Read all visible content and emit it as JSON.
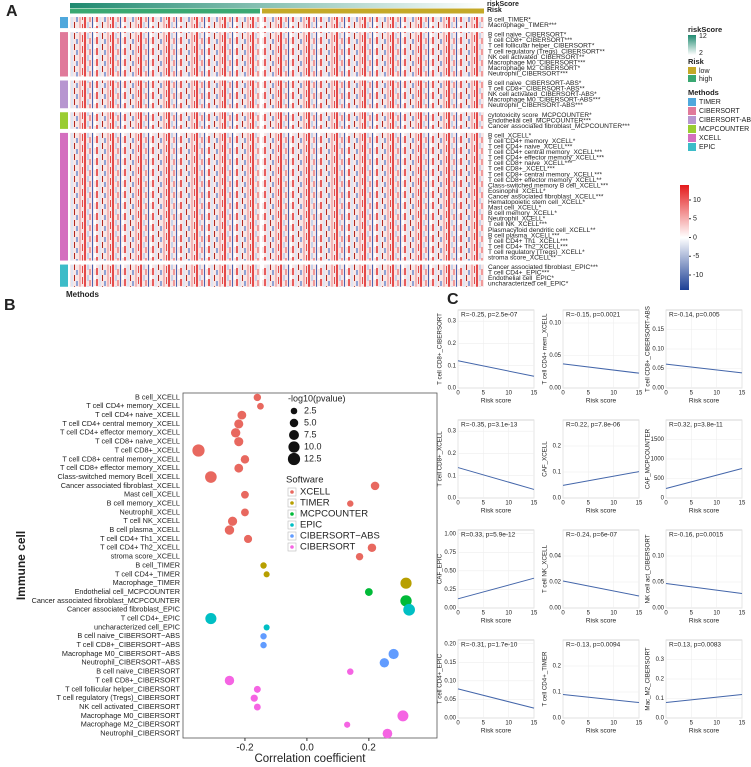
{
  "chart_data": [
    {
      "type": "heatmap",
      "panel": "A",
      "annotation_labels": [
        "riskScore",
        "Risk"
      ],
      "xlabel": "Methods",
      "row_groups": [
        {
          "color": "#4fa8dc",
          "rows": [
            "B cell_TIMER*",
            "Macrophage_TIMER***"
          ]
        },
        {
          "color": "#e07a9a",
          "rows": [
            "B cell naive_CIBERSORT*",
            "T cell CD8+_CIBERSORT***",
            "T cell follicular helper_CIBERSORT*",
            "T cell regulatory (Tregs)_CIBERSORT**",
            "NK cell activated_CIBERSORT**",
            "Macrophage M0_CIBERSORT***",
            "Macrophage M2_CIBERSORT*",
            "Neutrophil_CIBERSORT***"
          ]
        },
        {
          "color": "#b796d0",
          "rows": [
            "B cell naive_CIBERSORT-ABS*",
            "T cell CD8+_CIBERSORT-ABS**",
            "NK cell activated_CIBERSORT-ABS*",
            "Macrophage M0_CIBERSORT-ABS***",
            "Neutrophil_CIBERSORT-ABS***"
          ]
        },
        {
          "color": "#9acd32",
          "rows": [
            "cytotoxicity score_MCPCOUNTER*",
            "Endothelial cell_MCPCOUNTER***",
            "Cancer associated fibroblast_MCPCOUNTER***"
          ]
        },
        {
          "color": "#d46fbf",
          "rows": [
            "B cell_XCELL*",
            "T cell CD4+ memory_XCELL*",
            "T cell CD4+ naive_XCELL***",
            "T cell CD4+ central memory_XCELL***",
            "T cell CD4+ effector memory_XCELL***",
            "T cell CD8+ naive_XCELL***",
            "T cell CD8+_XCELL***",
            "T cell CD8+ central memory_XCELL***",
            "T cell CD8+ effector memory_XCELL**",
            "Class-switched memory B cell_XCELL***",
            "Eosinophil_XCELL*",
            "Cancer associated fibroblast_XCELL***",
            "Hematopoietic stem cell_XCELL*",
            "Mast cell_XCELL*",
            "B cell memory_XCELL*",
            "Neutrophil_XCELL*",
            "T cell NK_XCELL***",
            "Plasmacytoid dendritic cell_XCELL**",
            "B cell plasma_XCELL***",
            "T cell CD4+ Th1_XCELL***",
            "T cell CD4+ Th2_XCELL***",
            "T cell regulatory (Tregs)_XCELL*",
            "stroma score_XCELL**"
          ]
        },
        {
          "color": "#3cbcc8",
          "rows": [
            "Cancer associated fibroblast_EPIC***",
            "T cell CD4+_EPIC***",
            "Endothelial cell_EPIC*",
            "uncharacterized cell_EPIC*"
          ]
        }
      ],
      "risk_score_legend": {
        "title": "riskScore",
        "ticks": [
          12,
          2
        ],
        "colors": [
          "#1f8a70",
          "#ffffff"
        ]
      },
      "risk_legend": {
        "title": "Risk",
        "items": [
          {
            "name": "low",
            "color": "#c4a928"
          },
          {
            "name": "high",
            "color": "#3aa872"
          }
        ]
      },
      "methods_legend": {
        "title": "Methods",
        "items": [
          {
            "name": "TIMER",
            "color": "#4fa8dc"
          },
          {
            "name": "CIBERSORT",
            "color": "#e07a9a"
          },
          {
            "name": "CIBERSORT-ABS",
            "color": "#b796d0"
          },
          {
            "name": "MCPCOUNTER",
            "color": "#9acd32"
          },
          {
            "name": "XCELL",
            "color": "#d46fbf"
          },
          {
            "name": "EPIC",
            "color": "#3cbcc8"
          }
        ]
      },
      "colorbar": {
        "lim": [
          -14,
          14
        ],
        "ticks": [
          10,
          5,
          0,
          -5,
          -10
        ],
        "colors": [
          "#1c3f95",
          "#ffffff",
          "#e41a1c"
        ]
      }
    },
    {
      "type": "dot",
      "panel": "B",
      "ylabel": "Immune cell",
      "xlabel": "Correlation coefficient",
      "xlim": [
        -0.4,
        0.42
      ],
      "xticks": [
        -0.2,
        {
          "value": 0,
          "label": "0.0"
        },
        0.2
      ],
      "size_legend": {
        "title": "-log10(pvalue)",
        "ticks": [
          2.5,
          {
            "value": 5,
            "label": "5.0"
          },
          7.5,
          {
            "value": 10,
            "label": "10.0"
          },
          12.5
        ]
      },
      "legend_title": "Software",
      "series": [
        {
          "name": "XCELL",
          "color": "#e8685f",
          "categories": [
            "B cell_XCELL",
            "T cell CD4+ memory_XCELL",
            "T cell CD4+ naive_XCELL",
            "T cell CD4+ central memory_XCELL",
            "T cell CD4+ effector memory_XCELL",
            "T cell CD8+ naive_XCELL",
            "T cell CD8+_XCELL",
            "T cell CD8+ central memory_XCELL",
            "T cell CD8+ effector memory_XCELL",
            "Class-switched memory Bcell_XCELL",
            "Cancer associated fibroblast_XCELL",
            "Mast cell_XCELL",
            "B cell memory_XCELL",
            "Neutrophil_XCELL",
            "T cell NK_XCELL",
            "B cell plasma_XCELL",
            "T cell CD4+ Th1_XCELL",
            "T cell CD4+ Th2_XCELL",
            "stroma score_XCELL"
          ],
          "values": [
            -0.16,
            -0.15,
            -0.21,
            -0.22,
            -0.23,
            -0.22,
            -0.35,
            -0.2,
            -0.22,
            -0.31,
            0.22,
            -0.2,
            0.14,
            -0.2,
            -0.24,
            -0.25,
            -0.19,
            0.21,
            0.17
          ],
          "sizes": [
            3.5,
            2.7,
            5.5,
            6,
            6.5,
            6,
            12.5,
            5,
            5.5,
            11,
            5.1,
            4,
            2.3,
            4,
            6.2,
            6.5,
            4.5,
            5,
            3.5
          ]
        },
        {
          "name": "TIMER",
          "color": "#b79f00",
          "categories": [
            "B cell_TIMER",
            "T cell CD4+_TIMER",
            "Macrophage_TIMER"
          ],
          "values": [
            -0.14,
            -0.13,
            0.32
          ],
          "sizes": [
            2.3,
            2,
            10
          ]
        },
        {
          "name": "MCPCOUNTER",
          "color": "#00ba38",
          "categories": [
            "Endothelial cell_MCPCOUNTER",
            "Cancer associated fibroblast_MCPCOUNTER"
          ],
          "values": [
            0.2,
            0.32
          ],
          "sizes": [
            4,
            10.4
          ]
        },
        {
          "name": "EPIC",
          "color": "#00bfc4",
          "categories": [
            "Cancer associated fibroblast_EPIC",
            "T cell CD4+_EPIC",
            "uncharacterized cell_EPIC"
          ],
          "values": [
            0.33,
            -0.31,
            -0.13
          ],
          "sizes": [
            11.2,
            9.8,
            2
          ]
        },
        {
          "name": "CIBERSORT−ABS",
          "color": "#619cff",
          "categories": [
            "B cell naive_CIBERSORT−ABS",
            "T cell CD8+_CIBERSORT−ABS",
            "Macrophage M0_CIBERSORT−ABS",
            "Neutrophil_CIBERSORT−ABS"
          ],
          "values": [
            -0.14,
            -0.14,
            0.28,
            0.25
          ],
          "sizes": [
            2.3,
            2.3,
            8,
            6.5
          ]
        },
        {
          "name": "CIBERSORT",
          "color": "#f564e3",
          "categories": [
            "B cell naive_CIBERSORT",
            "T cell CD8+_CIBERSORT",
            "T cell follicular helper_CIBERSORT",
            "T cell regulatory (Tregs)_CIBERSORT",
            "NK cell activated_CIBERSORT",
            "Macrophage M0_CIBERSORT",
            "Macrophage M2_CIBERSORT",
            "Neutrophil_CIBERSORT"
          ],
          "values": [
            0.14,
            -0.25,
            -0.16,
            -0.17,
            -0.16,
            0.31,
            0.13,
            0.26
          ],
          "sizes": [
            2.4,
            6.6,
            2.9,
            3.2,
            2.8,
            9.5,
            2.1,
            7
          ]
        }
      ]
    },
    {
      "type": "scatter",
      "panel": "C",
      "xlabel": "Risk score",
      "xlim": [
        0,
        15
      ],
      "xticks": [
        0,
        5,
        10,
        15
      ],
      "panels": [
        {
          "ylabel": "T cell CD8+_CIBERSORT",
          "annotation": "R=-0.25, p=2.5e-07",
          "ylim": [
            0,
            0.35
          ],
          "yticks": [
            {
              "value": 0,
              "label": "0.0"
            },
            0.1,
            0.2,
            0.3
          ]
        },
        {
          "ylabel": "T cell CD4+ mem_XCELL",
          "annotation": "R=-0.15, p=0.0021",
          "ylim": [
            0,
            0.12
          ],
          "yticks": [
            {
              "value": 0,
              "label": "0.00"
            },
            0.05,
            {
              "value": 0.1,
              "label": "0.10"
            }
          ]
        },
        {
          "ylabel": "T cell CD8+_CIBERSORT-ABS",
          "annotation": "R=-0.14, p=0.005",
          "ylim": [
            0,
            0.2
          ],
          "yticks": [
            {
              "value": 0,
              "label": "0.00"
            },
            0.05,
            {
              "value": 0.1,
              "label": "0.10"
            },
            0.15
          ]
        },
        {
          "ylabel": "T cell CD8+_XCELL",
          "annotation": "R=-0.35, p=3.1e-13",
          "ylim": [
            0,
            0.35
          ],
          "yticks": [
            {
              "value": 0,
              "label": "0.0"
            },
            0.1,
            0.2,
            0.3
          ]
        },
        {
          "ylabel": "CAF_XCELL",
          "annotation": "R=0.22, p=7.8e-06",
          "ylim": [
            0,
            0.3
          ],
          "yticks": [
            {
              "value": 0,
              "label": "0.0"
            },
            0.1,
            0.2
          ]
        },
        {
          "ylabel": "CAF_MCPCOUNTER",
          "annotation": "R=0.32, p=3.8e-11",
          "ylim": [
            0,
            2000
          ],
          "yticks": [
            0,
            500,
            1000,
            1500
          ]
        },
        {
          "ylabel": "CAF_EPIC",
          "annotation": "R=0.33, p=5.9e-12",
          "ylim": [
            0,
            1.05
          ],
          "yticks": [
            {
              "value": 0,
              "label": "0.00"
            },
            0.25,
            {
              "value": 0.5,
              "label": "0.50"
            },
            0.75,
            {
              "value": 1,
              "label": "1.00"
            }
          ]
        },
        {
          "ylabel": "T cell NK_XCELL",
          "annotation": "R=-0.24, p=6e-07",
          "ylim": [
            0,
            0.06
          ],
          "yticks": [
            {
              "value": 0,
              "label": "0.00"
            },
            0.02,
            0.04
          ]
        },
        {
          "ylabel": "NK cell act_CIBERSORT",
          "annotation": "R=-0.16, p=0.0015",
          "ylim": [
            0,
            0.15
          ],
          "yticks": [
            {
              "value": 0,
              "label": "0.00"
            },
            0.05,
            {
              "value": 0.1,
              "label": "0.10"
            }
          ]
        },
        {
          "ylabel": "T cell CD4+_EPIC",
          "annotation": "R=-0.31, p=1.7e-10",
          "ylim": [
            0,
            0.21
          ],
          "yticks": [
            {
              "value": 0,
              "label": "0.00"
            },
            0.05,
            {
              "value": 0.1,
              "label": "0.10"
            },
            0.15,
            {
              "value": 0.2,
              "label": "0.20"
            }
          ]
        },
        {
          "ylabel": "T cell CD4+_TIMER",
          "annotation": "R=-0.13, p=0.0094",
          "ylim": [
            0,
            0.3
          ],
          "yticks": [
            {
              "value": 0,
              "label": "0.0"
            },
            0.1,
            0.2
          ]
        },
        {
          "ylabel": "Mac_M2_CIBERSORT",
          "annotation": "R=0.13, p=0.0083",
          "ylim": [
            0,
            0.4
          ],
          "yticks": [
            {
              "value": 0,
              "label": "0.0"
            },
            0.1,
            0.2,
            0.3
          ]
        }
      ]
    }
  ]
}
